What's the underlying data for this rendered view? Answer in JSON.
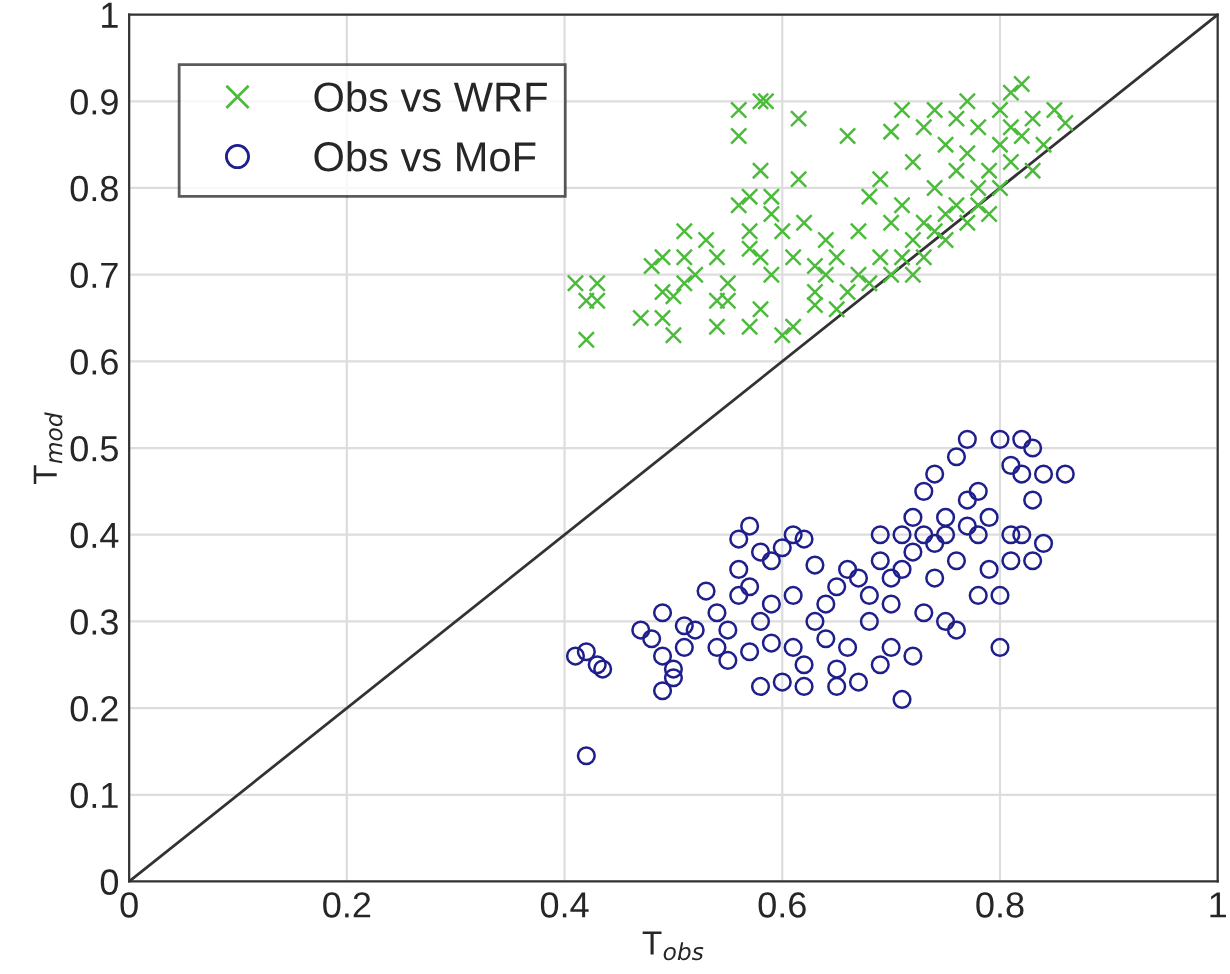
{
  "chart_data": {
    "type": "scatter",
    "xlabel": "T$_{obs}$",
    "ylabel": "T$_{mod}$",
    "xlim": [
      0,
      1
    ],
    "ylim": [
      0,
      1
    ],
    "xticks": [
      0,
      0.2,
      0.4,
      0.6,
      0.8,
      1
    ],
    "yticks": [
      0,
      0.1,
      0.2,
      0.3,
      0.4,
      0.5,
      0.6,
      0.7,
      0.8,
      0.9,
      1
    ],
    "grid": true,
    "legend": "top left",
    "series": [
      {
        "name": "Obs vs WRF",
        "color": "#4cbb3c",
        "marker": "cross",
        "x": [
          0.41,
          0.42,
          0.43,
          0.43,
          0.42,
          0.47,
          0.48,
          0.49,
          0.49,
          0.49,
          0.5,
          0.5,
          0.51,
          0.51,
          0.51,
          0.52,
          0.53,
          0.54,
          0.54,
          0.54,
          0.55,
          0.55,
          0.56,
          0.56,
          0.56,
          0.57,
          0.57,
          0.57,
          0.57,
          0.58,
          0.585,
          0.58,
          0.58,
          0.58,
          0.59,
          0.59,
          0.59,
          0.6,
          0.6,
          0.61,
          0.61,
          0.615,
          0.615,
          0.62,
          0.63,
          0.63,
          0.63,
          0.64,
          0.64,
          0.65,
          0.65,
          0.66,
          0.66,
          0.67,
          0.67,
          0.68,
          0.68,
          0.69,
          0.69,
          0.7,
          0.7,
          0.7,
          0.71,
          0.71,
          0.71,
          0.72,
          0.72,
          0.72,
          0.73,
          0.73,
          0.73,
          0.74,
          0.74,
          0.74,
          0.75,
          0.75,
          0.75,
          0.76,
          0.76,
          0.76,
          0.77,
          0.77,
          0.77,
          0.78,
          0.78,
          0.78,
          0.79,
          0.79,
          0.8,
          0.8,
          0.8,
          0.81,
          0.81,
          0.81,
          0.82,
          0.82,
          0.83,
          0.83,
          0.84,
          0.85,
          0.86
        ],
        "values": [
          0.69,
          0.67,
          0.67,
          0.69,
          0.625,
          0.65,
          0.71,
          0.72,
          0.68,
          0.65,
          0.63,
          0.675,
          0.69,
          0.75,
          0.72,
          0.7,
          0.74,
          0.72,
          0.67,
          0.64,
          0.69,
          0.67,
          0.78,
          0.86,
          0.89,
          0.73,
          0.75,
          0.79,
          0.64,
          0.9,
          0.9,
          0.72,
          0.66,
          0.82,
          0.77,
          0.79,
          0.7,
          0.75,
          0.63,
          0.64,
          0.72,
          0.81,
          0.88,
          0.76,
          0.71,
          0.68,
          0.665,
          0.74,
          0.7,
          0.72,
          0.66,
          0.86,
          0.68,
          0.75,
          0.7,
          0.79,
          0.69,
          0.81,
          0.72,
          0.865,
          0.7,
          0.76,
          0.89,
          0.78,
          0.72,
          0.83,
          0.74,
          0.7,
          0.87,
          0.76,
          0.72,
          0.89,
          0.8,
          0.75,
          0.85,
          0.77,
          0.74,
          0.88,
          0.82,
          0.78,
          0.76,
          0.9,
          0.84,
          0.8,
          0.87,
          0.78,
          0.82,
          0.77,
          0.89,
          0.85,
          0.8,
          0.91,
          0.87,
          0.83,
          0.92,
          0.86,
          0.82,
          0.88,
          0.85,
          0.89,
          0.875
        ]
      },
      {
        "name": "Obs vs MoF",
        "color": "#1f1f8c",
        "marker": "circle",
        "x": [
          0.42,
          0.41,
          0.42,
          0.43,
          0.435,
          0.47,
          0.48,
          0.49,
          0.49,
          0.49,
          0.5,
          0.5,
          0.51,
          0.51,
          0.52,
          0.53,
          0.54,
          0.54,
          0.55,
          0.55,
          0.56,
          0.56,
          0.56,
          0.57,
          0.57,
          0.57,
          0.58,
          0.58,
          0.58,
          0.59,
          0.59,
          0.59,
          0.6,
          0.6,
          0.61,
          0.61,
          0.61,
          0.62,
          0.62,
          0.62,
          0.63,
          0.63,
          0.64,
          0.64,
          0.65,
          0.65,
          0.65,
          0.66,
          0.66,
          0.67,
          0.67,
          0.68,
          0.68,
          0.69,
          0.69,
          0.69,
          0.7,
          0.7,
          0.7,
          0.71,
          0.71,
          0.71,
          0.72,
          0.72,
          0.72,
          0.73,
          0.73,
          0.73,
          0.74,
          0.74,
          0.74,
          0.75,
          0.75,
          0.75,
          0.76,
          0.76,
          0.76,
          0.77,
          0.77,
          0.77,
          0.78,
          0.78,
          0.78,
          0.79,
          0.79,
          0.8,
          0.8,
          0.8,
          0.81,
          0.81,
          0.81,
          0.82,
          0.82,
          0.82,
          0.83,
          0.83,
          0.83,
          0.84,
          0.84,
          0.86
        ],
        "values": [
          0.145,
          0.26,
          0.265,
          0.25,
          0.245,
          0.29,
          0.28,
          0.31,
          0.26,
          0.22,
          0.235,
          0.245,
          0.27,
          0.295,
          0.29,
          0.335,
          0.31,
          0.27,
          0.29,
          0.255,
          0.395,
          0.36,
          0.33,
          0.41,
          0.34,
          0.265,
          0.38,
          0.225,
          0.3,
          0.37,
          0.32,
          0.275,
          0.385,
          0.23,
          0.4,
          0.33,
          0.27,
          0.395,
          0.25,
          0.225,
          0.365,
          0.3,
          0.32,
          0.28,
          0.34,
          0.245,
          0.225,
          0.36,
          0.27,
          0.35,
          0.23,
          0.33,
          0.3,
          0.4,
          0.37,
          0.25,
          0.35,
          0.32,
          0.27,
          0.4,
          0.21,
          0.36,
          0.42,
          0.38,
          0.26,
          0.45,
          0.4,
          0.31,
          0.47,
          0.39,
          0.35,
          0.42,
          0.4,
          0.3,
          0.49,
          0.37,
          0.29,
          0.51,
          0.44,
          0.41,
          0.45,
          0.4,
          0.33,
          0.42,
          0.36,
          0.51,
          0.33,
          0.27,
          0.48,
          0.4,
          0.37,
          0.51,
          0.47,
          0.4,
          0.5,
          0.44,
          0.37,
          0.39,
          0.47,
          0.47
        ]
      },
      {
        "type": "line",
        "color": "#333333",
        "marker": "none",
        "line_style": "solid",
        "x": [
          0,
          1
        ],
        "values": [
          0,
          1
        ]
      }
    ]
  }
}
